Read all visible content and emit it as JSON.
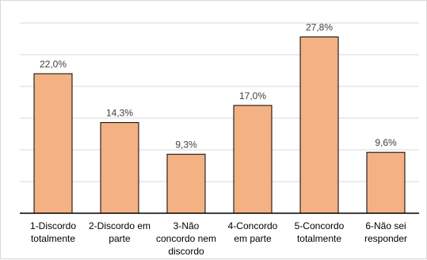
{
  "chart_data": {
    "type": "bar",
    "title": "",
    "xlabel": "",
    "ylabel": "",
    "categories": [
      [
        "1-Discordo",
        "totalmente"
      ],
      [
        "2-Discordo em",
        "parte"
      ],
      [
        "3-Não",
        "concordo nem",
        "discordo"
      ],
      [
        "4-Concordo",
        "em parte"
      ],
      [
        "5-Concordo",
        "totalmente"
      ],
      [
        "6-Não sei",
        "responder"
      ]
    ],
    "values": [
      22.0,
      14.3,
      9.3,
      17.0,
      27.8,
      9.6
    ],
    "value_labels": [
      "22,0%",
      "14,3%",
      "9,3%",
      "17,0%",
      "27,8%",
      "9,6%"
    ],
    "ylim": [
      0,
      30
    ],
    "y_gridlines": [
      5,
      10,
      15,
      20,
      25,
      30
    ],
    "grid": true,
    "legend": "none",
    "colors": {
      "bar_fill": "#F4B183",
      "bar_stroke": "#000000",
      "gridline": "#d9d9d9",
      "axis": "#000000"
    }
  }
}
